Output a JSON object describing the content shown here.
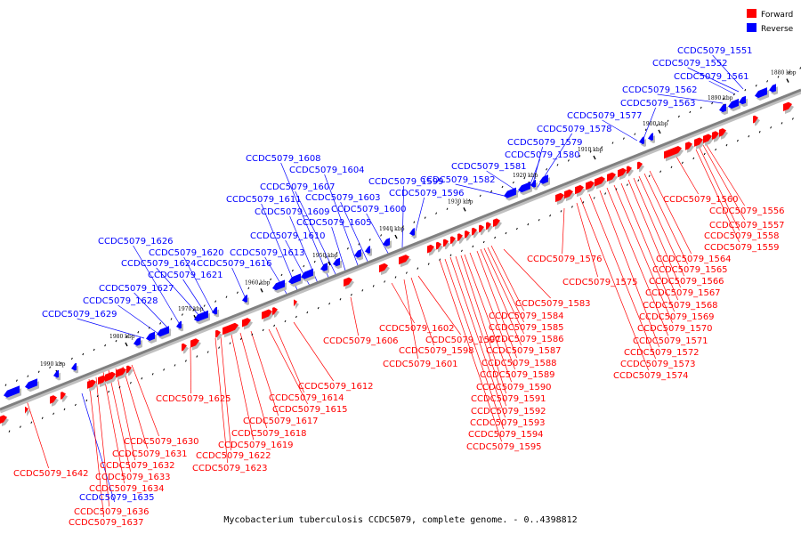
{
  "title": "Mycobacterium tuberculosis CCDC5079, complete genome. - 0..4398812",
  "legend": [
    {
      "label": "Forward",
      "color": "#ff0000"
    },
    {
      "label": "Reverse",
      "color": "#0000ff"
    }
  ],
  "colors": {
    "forward": "#ff0000",
    "reverse": "#0000ff",
    "backbone": "#808080"
  },
  "scale_labels": [
    "1880 kbp",
    "1890 kbp",
    "1900 kbp",
    "1910 kbp",
    "1920 kbp",
    "1930 kbp",
    "1940 kbp",
    "1950 kbp",
    "1960 kbp",
    "1970 kbp",
    "1980 kbp",
    "1990 kbp"
  ],
  "reverse_genes": [
    "CCDC5079_1551",
    "CCDC5079_1552",
    "CCDC5079_1561",
    "CCDC5079_1562",
    "CCDC5079_1563",
    "CCDC5079_1577",
    "CCDC5079_1578",
    "CCDC5079_1579",
    "CCDC5079_1580",
    "CCDC5079_1581",
    "CCDC5079_1582",
    "CCDC5079_1596",
    "CCDC5079_1599",
    "CCDC5079_1600",
    "CCDC5079_1603",
    "CCDC5079_1604",
    "CCDC5079_1605",
    "CCDC5079_1607",
    "CCDC5079_1608",
    "CCDC5079_1609",
    "CCDC5079_1610",
    "CCDC5079_1611",
    "CCDC5079_1613",
    "CCDC5079_1616",
    "CCDC5079_1620",
    "CCDC5079_1621",
    "CCDC5079_1624",
    "CCDC5079_1626",
    "CCDC5079_1627",
    "CCDC5079_1628",
    "CCDC5079_1629",
    "CCDC5079_1635"
  ],
  "forward_genes": [
    "CCDC5079_1556",
    "CCDC5079_1557",
    "CCDC5079_1558",
    "CCDC5079_1559",
    "CCDC5079_1560",
    "CCDC5079_1564",
    "CCDC5079_1565",
    "CCDC5079_1566",
    "CCDC5079_1567",
    "CCDC5079_1568",
    "CCDC5079_1569",
    "CCDC5079_1570",
    "CCDC5079_1571",
    "CCDC5079_1572",
    "CCDC5079_1573",
    "CCDC5079_1574",
    "CCDC5079_1575",
    "CCDC5079_1576",
    "CCDC5079_1583",
    "CCDC5079_1584",
    "CCDC5079_1585",
    "CCDC5079_1586",
    "CCDC5079_1587",
    "CCDC5079_1588",
    "CCDC5079_1589",
    "CCDC5079_1590",
    "CCDC5079_1591",
    "CCDC5079_1592",
    "CCDC5079_1593",
    "CCDC5079_1594",
    "CCDC5079_1595",
    "CCDC5079_1597",
    "CCDC5079_1598",
    "CCDC5079_1601",
    "CCDC5079_1602",
    "CCDC5079_1606",
    "CCDC5079_1612",
    "CCDC5079_1614",
    "CCDC5079_1615",
    "CCDC5079_1617",
    "CCDC5079_1618",
    "CCDC5079_1619",
    "CCDC5079_1622",
    "CCDC5079_1623",
    "CCDC5079_1625",
    "CCDC5079_1630",
    "CCDC5079_1631",
    "CCDC5079_1632",
    "CCDC5079_1633",
    "CCDC5079_1634",
    "CCDC5079_1636",
    "CCDC5079_1637",
    "CCDC5079_1642"
  ]
}
